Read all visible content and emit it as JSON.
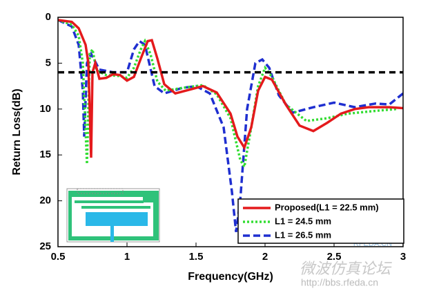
{
  "chart_data": {
    "type": "line",
    "xlabel": "Frequency(GHz)",
    "ylabel": "Return Loss(dB)",
    "xlim": [
      0.5,
      3
    ],
    "ylim": [
      25,
      0
    ],
    "xticks": [
      0.5,
      1,
      1.5,
      2,
      2.5,
      3
    ],
    "yticks": [
      0,
      5,
      10,
      15,
      20,
      25
    ],
    "reference_line": {
      "value": 6,
      "color": "#000000"
    },
    "legend": "lower right",
    "watermarks": [
      "RFEDA.CN",
      "微波仿真论坛",
      "http://bbs.rfeda.cn"
    ],
    "series": [
      {
        "name": "Proposed(L1 = 22.5 mm)",
        "color": "#e41a1c",
        "dash": "solid",
        "x": [
          0.5,
          0.6,
          0.65,
          0.7,
          0.72,
          0.74,
          0.75,
          0.77,
          0.8,
          0.85,
          0.9,
          0.95,
          1.0,
          1.05,
          1.1,
          1.15,
          1.18,
          1.22,
          1.27,
          1.35,
          1.45,
          1.55,
          1.65,
          1.75,
          1.8,
          1.85,
          1.9,
          1.95,
          2.0,
          2.05,
          2.15,
          2.25,
          2.35,
          2.45,
          2.55,
          2.65,
          2.75,
          2.9,
          3.0
        ],
        "values": [
          0.3,
          0.5,
          1.2,
          3,
          5,
          15.3,
          6,
          5,
          6.7,
          6.6,
          6.2,
          6.3,
          6.9,
          6.5,
          4.5,
          2.6,
          2.5,
          4.5,
          7.3,
          8.3,
          7.9,
          7.5,
          8.2,
          10.5,
          13.0,
          14.2,
          12,
          8,
          6.5,
          6.8,
          9.5,
          11.8,
          12.4,
          11.5,
          10.5,
          10,
          9.8,
          9.8,
          9.9
        ]
      },
      {
        "name": "L1 = 24.5 mm",
        "color": "#33dd33",
        "dash": "dotted",
        "x": [
          0.5,
          0.6,
          0.65,
          0.68,
          0.71,
          0.73,
          0.75,
          0.78,
          0.85,
          0.95,
          1.0,
          1.05,
          1.1,
          1.13,
          1.17,
          1.22,
          1.28,
          1.4,
          1.55,
          1.65,
          1.75,
          1.82,
          1.85,
          1.9,
          1.95,
          2.0,
          2.05,
          2.15,
          2.3,
          2.45,
          2.6,
          2.8,
          2.95
        ],
        "values": [
          0.3,
          0.8,
          2,
          5,
          16,
          4,
          3.5,
          5.8,
          6.3,
          6.4,
          6.6,
          5.5,
          3.5,
          2.6,
          4,
          7,
          8,
          7.7,
          7.4,
          8.4,
          11,
          15.5,
          16.3,
          12,
          7.5,
          5.5,
          6.5,
          9.5,
          11.3,
          11,
          10.5,
          10.2,
          10
        ]
      },
      {
        "name": "L1 = 26.5 mm",
        "color": "#1f2fd0",
        "dash": "dashed",
        "x": [
          0.5,
          0.6,
          0.65,
          0.68,
          0.69,
          0.71,
          0.74,
          0.8,
          0.9,
          1.0,
          1.05,
          1.09,
          1.13,
          1.2,
          1.27,
          1.4,
          1.5,
          1.6,
          1.7,
          1.76,
          1.79,
          1.82,
          1.87,
          1.93,
          1.98,
          2.03,
          2.1,
          2.2,
          2.35,
          2.5,
          2.65,
          2.8,
          2.9,
          3.0
        ],
        "values": [
          0.3,
          1,
          3,
          8,
          13,
          5,
          4,
          5.7,
          6,
          6,
          3.5,
          2.6,
          3,
          7.5,
          8.3,
          7.7,
          7.5,
          8.3,
          12,
          19,
          23.4,
          20,
          10,
          5,
          4.6,
          5.5,
          8.5,
          10.4,
          9.8,
          9.3,
          9.8,
          9.4,
          9.5,
          8.3
        ]
      }
    ]
  }
}
